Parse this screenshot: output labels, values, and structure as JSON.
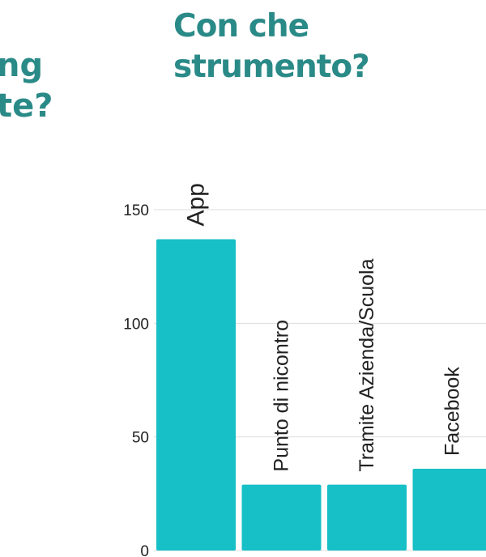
{
  "left_title": {
    "line1": "ng",
    "line2": "te?"
  },
  "chart_data": {
    "type": "bar",
    "title_lines": [
      "Con che",
      "strumento?"
    ],
    "categories": [
      "App",
      "Punto di nicontro",
      "Tramite Azienda/Scuola",
      "Facebook"
    ],
    "values": [
      137,
      29,
      29,
      36
    ],
    "yticks": [
      0,
      50,
      100,
      150
    ],
    "ylim": [
      0,
      150
    ],
    "grid": true,
    "colors": {
      "bar": "#17bfc6",
      "title": "#2a8a87",
      "grid": "#dddddd"
    }
  }
}
